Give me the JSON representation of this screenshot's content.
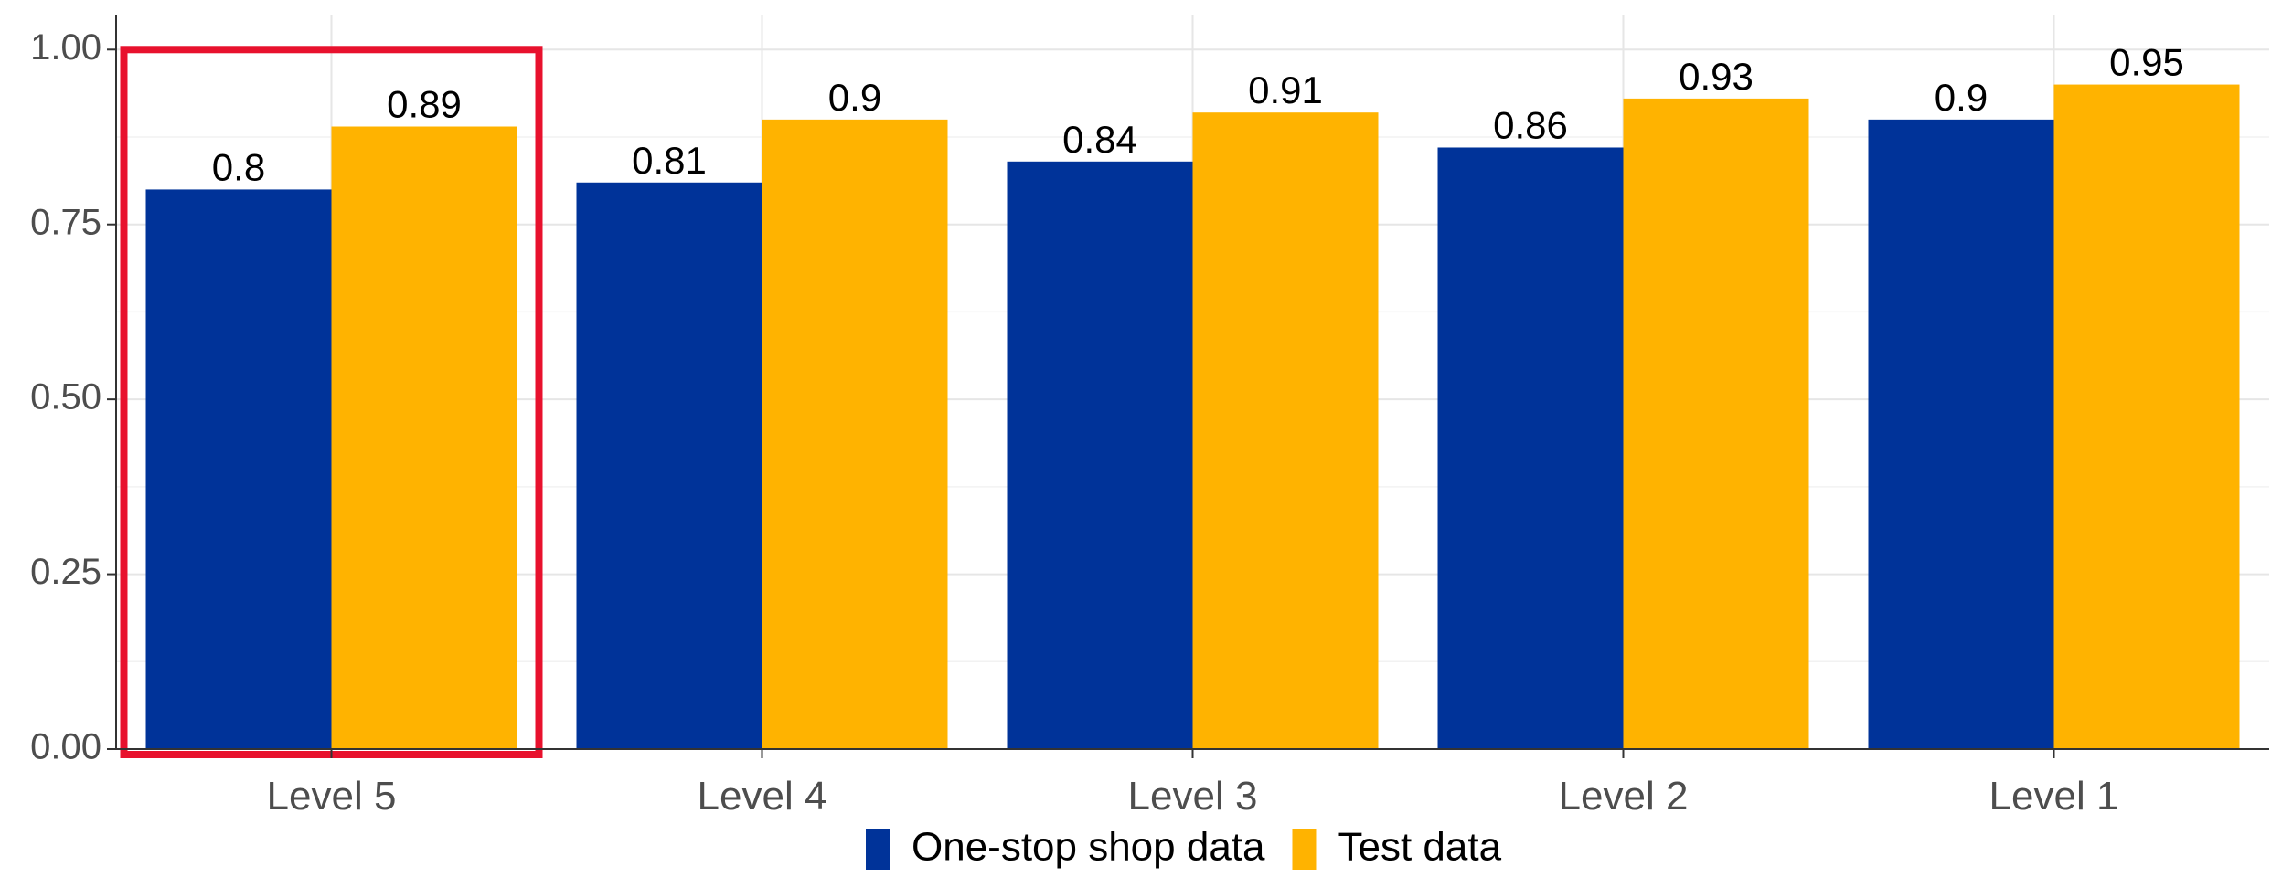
{
  "chart_data": {
    "type": "bar",
    "title": "",
    "xlabel": "",
    "ylabel": "",
    "categories": [
      "Level 5",
      "Level 4",
      "Level 3",
      "Level 2",
      "Level 1"
    ],
    "series": [
      {
        "name": "One-stop shop data",
        "color": "#003399",
        "values": [
          0.8,
          0.81,
          0.84,
          0.86,
          0.9
        ],
        "labels": [
          "0.8",
          "0.81",
          "0.84",
          "0.86",
          "0.9"
        ]
      },
      {
        "name": "Test data",
        "color": "#ffb300",
        "values": [
          0.89,
          0.9,
          0.91,
          0.93,
          0.95
        ],
        "labels": [
          "0.89",
          "0.9",
          "0.91",
          "0.93",
          "0.95"
        ]
      }
    ],
    "ylim": [
      0,
      1.05
    ],
    "yticks": [
      0,
      0.25,
      0.5,
      0.75,
      1.0
    ],
    "ytick_labels": [
      "0.00",
      "0.25",
      "0.50",
      "0.75",
      "1.00"
    ],
    "grid": true,
    "legend": "bottom",
    "highlight": {
      "category": "Level 5",
      "color": "#e8112d"
    }
  }
}
